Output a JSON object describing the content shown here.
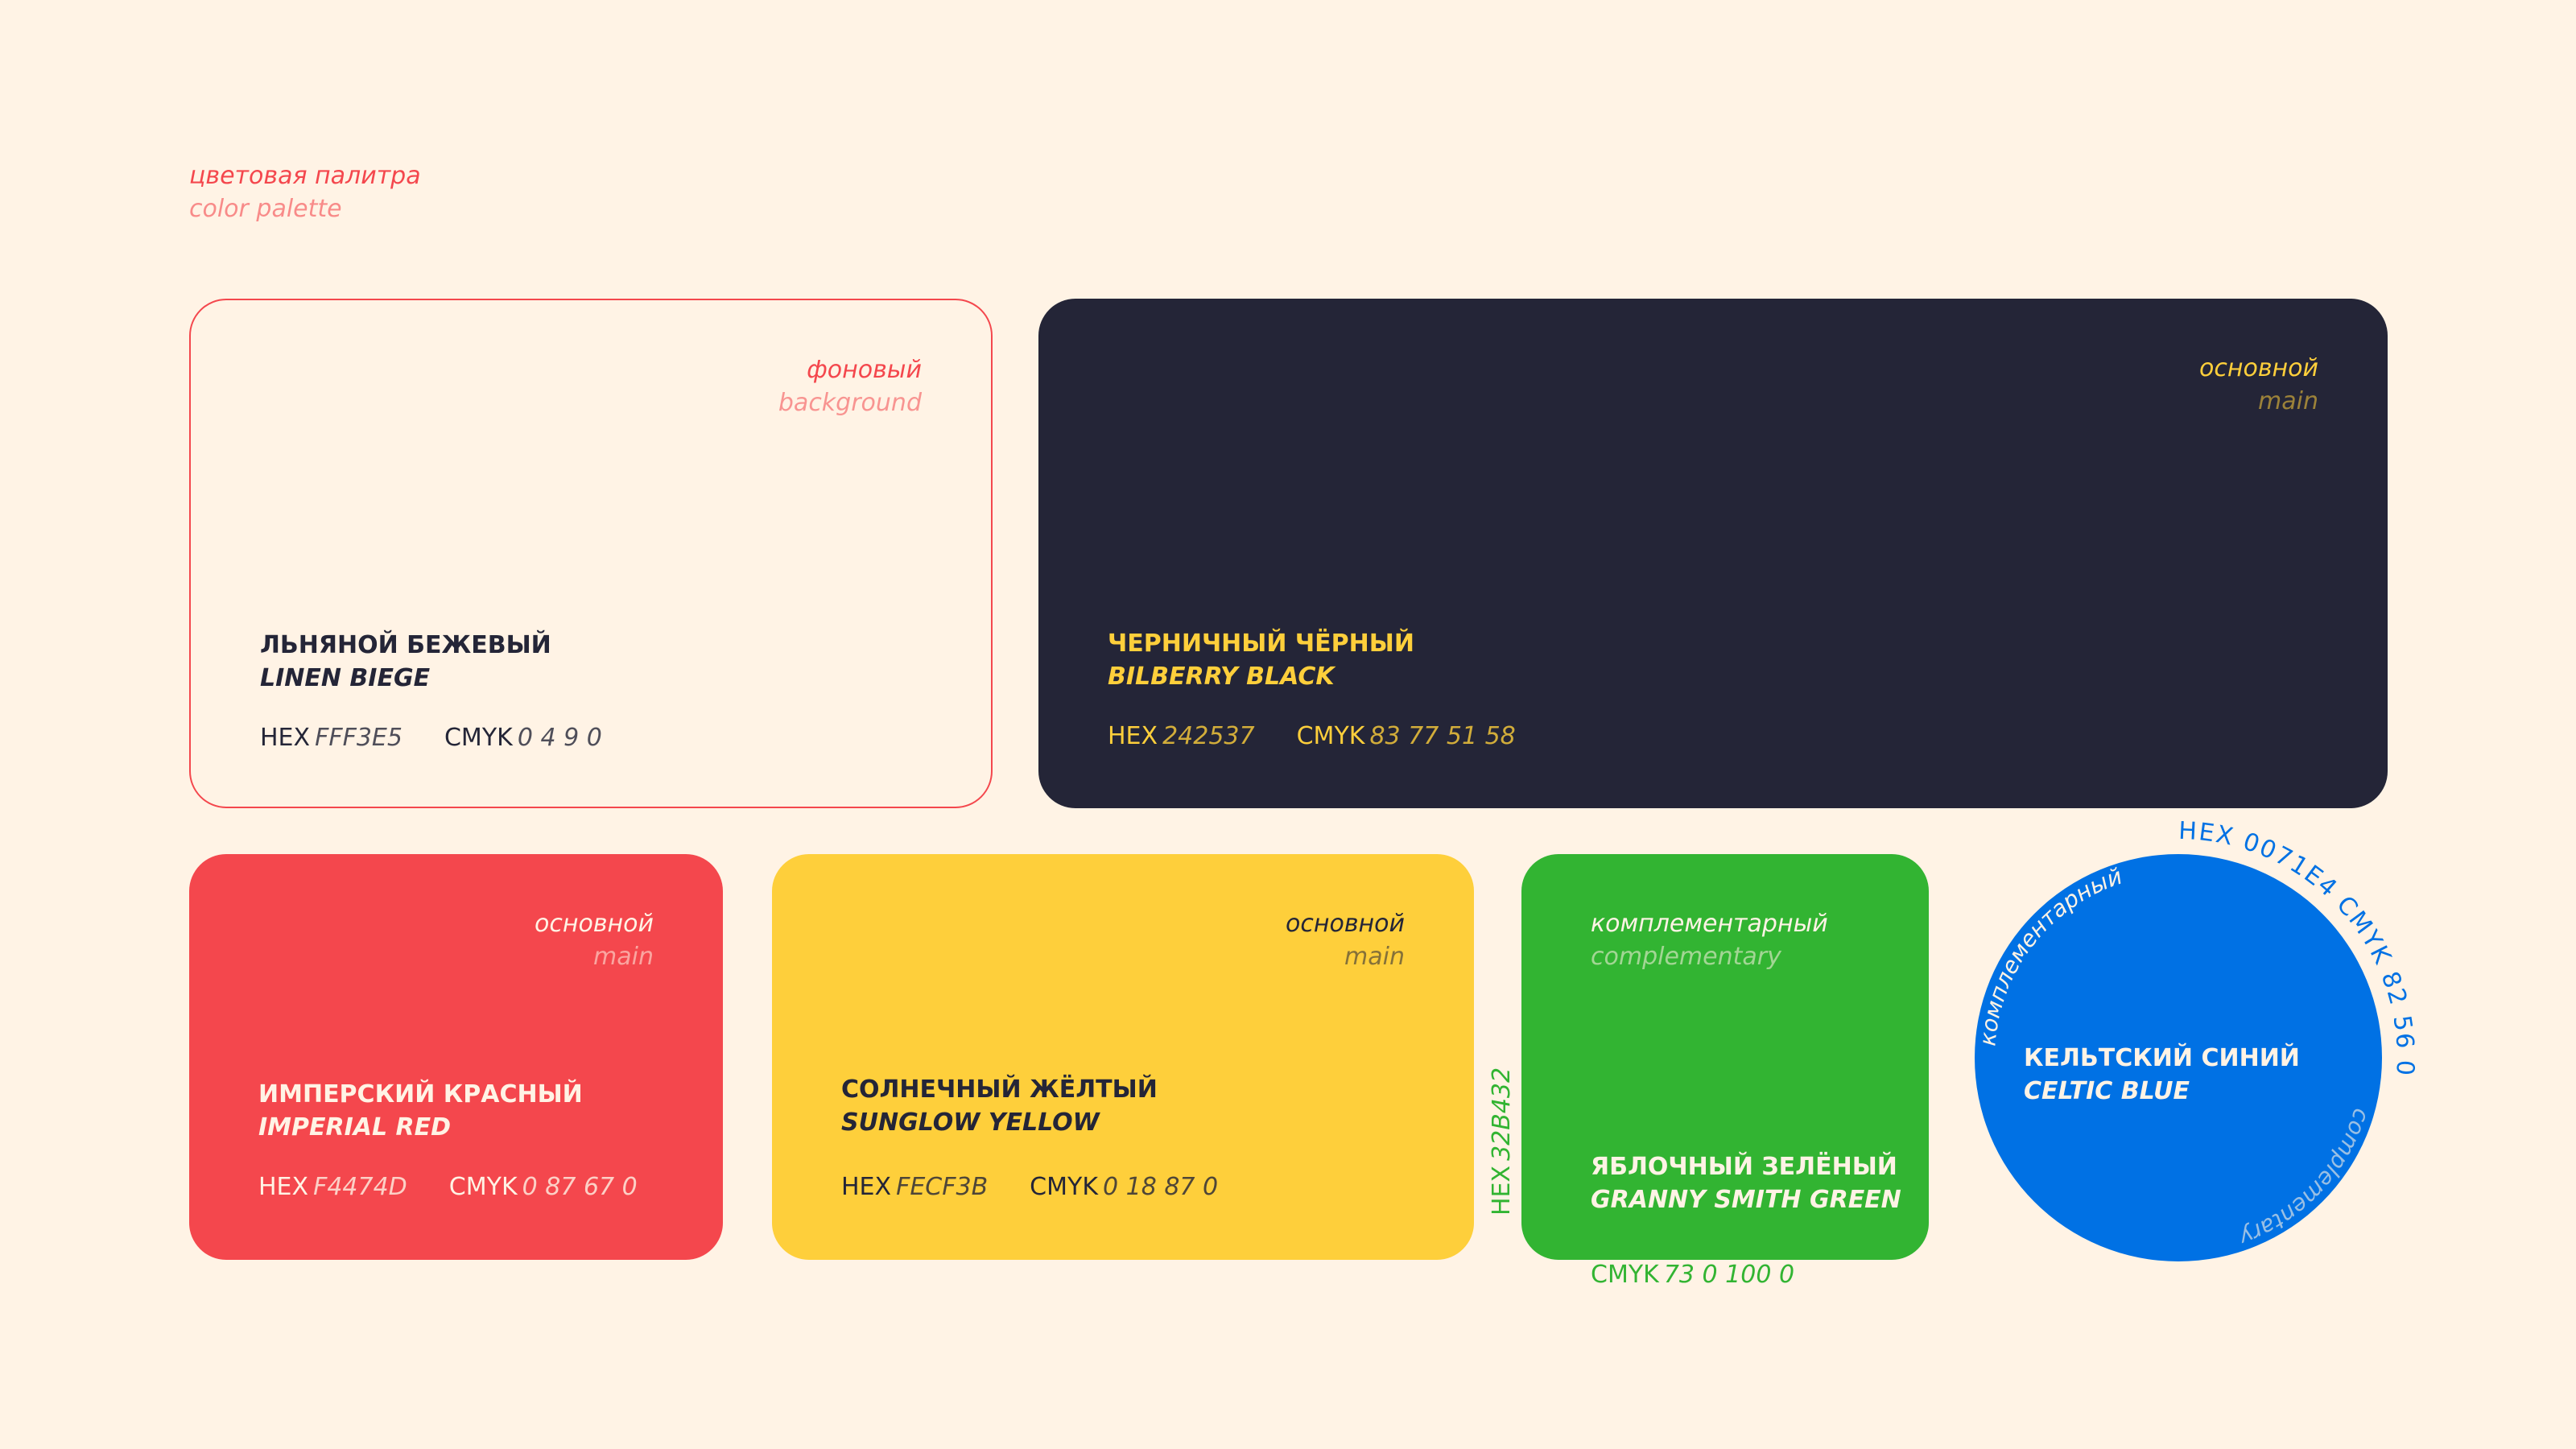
{
  "header": {
    "title_ru": "цветовая палитра",
    "title_en": "color palette"
  },
  "colors": {
    "bg": "#FFF3E5",
    "black": "#242537",
    "red": "#F4474D",
    "yellow": "#FECF3B",
    "green": "#32B432",
    "blue": "#0071E4"
  },
  "cards": [
    {
      "tag_ru": "фоновый",
      "tag_en": "background",
      "name_ru": "ЛЬНЯНОЙ БЕЖЕВЫЙ",
      "name_en": "LINEN BIEGE",
      "hex_label": "HEX",
      "hex": "FFF3E5",
      "cmyk_label": "CMYK",
      "cmyk": "0 4 9 0"
    },
    {
      "tag_ru": "основной",
      "tag_en": "main",
      "name_ru": "ЧЕРНИЧНЫЙ ЧЁРНЫЙ",
      "name_en": "BILBERRY BLACK",
      "hex_label": "HEX",
      "hex": "242537",
      "cmyk_label": "CMYK",
      "cmyk": "83 77 51 58"
    },
    {
      "tag_ru": "основной",
      "tag_en": "main",
      "name_ru": "ИМПЕРСКИЙ КРАСНЫЙ",
      "name_en": "IMPERIAL RED",
      "hex_label": "HEX",
      "hex": "F4474D",
      "cmyk_label": "CMYK",
      "cmyk": "0 87 67 0"
    },
    {
      "tag_ru": "основной",
      "tag_en": "main",
      "name_ru": "СОЛНЕЧНЫЙ ЖЁЛТЫЙ",
      "name_en": "SUNGLOW YELLOW",
      "hex_label": "HEX",
      "hex": "FECF3B",
      "cmyk_label": "CMYK",
      "cmyk": "0 18 87 0"
    },
    {
      "tag_ru": "комплементарный",
      "tag_en": "complementary",
      "name_ru": "ЯБЛОЧНЫЙ ЗЕЛЁНЫЙ",
      "name_en": "GRANNY SMITH GREEN",
      "hex_label": "HEX",
      "hex": "32B432",
      "cmyk_label": "CMYK",
      "cmyk": "73 0 100 0"
    },
    {
      "tag_ru": "комплементарный",
      "tag_en": "complementary",
      "name_ru": "КЕЛЬТСКИЙ СИНИЙ",
      "name_en": "CELTIC BLUE",
      "codes_text": "HEX 0071E4 CMYK 82 56 0"
    }
  ]
}
